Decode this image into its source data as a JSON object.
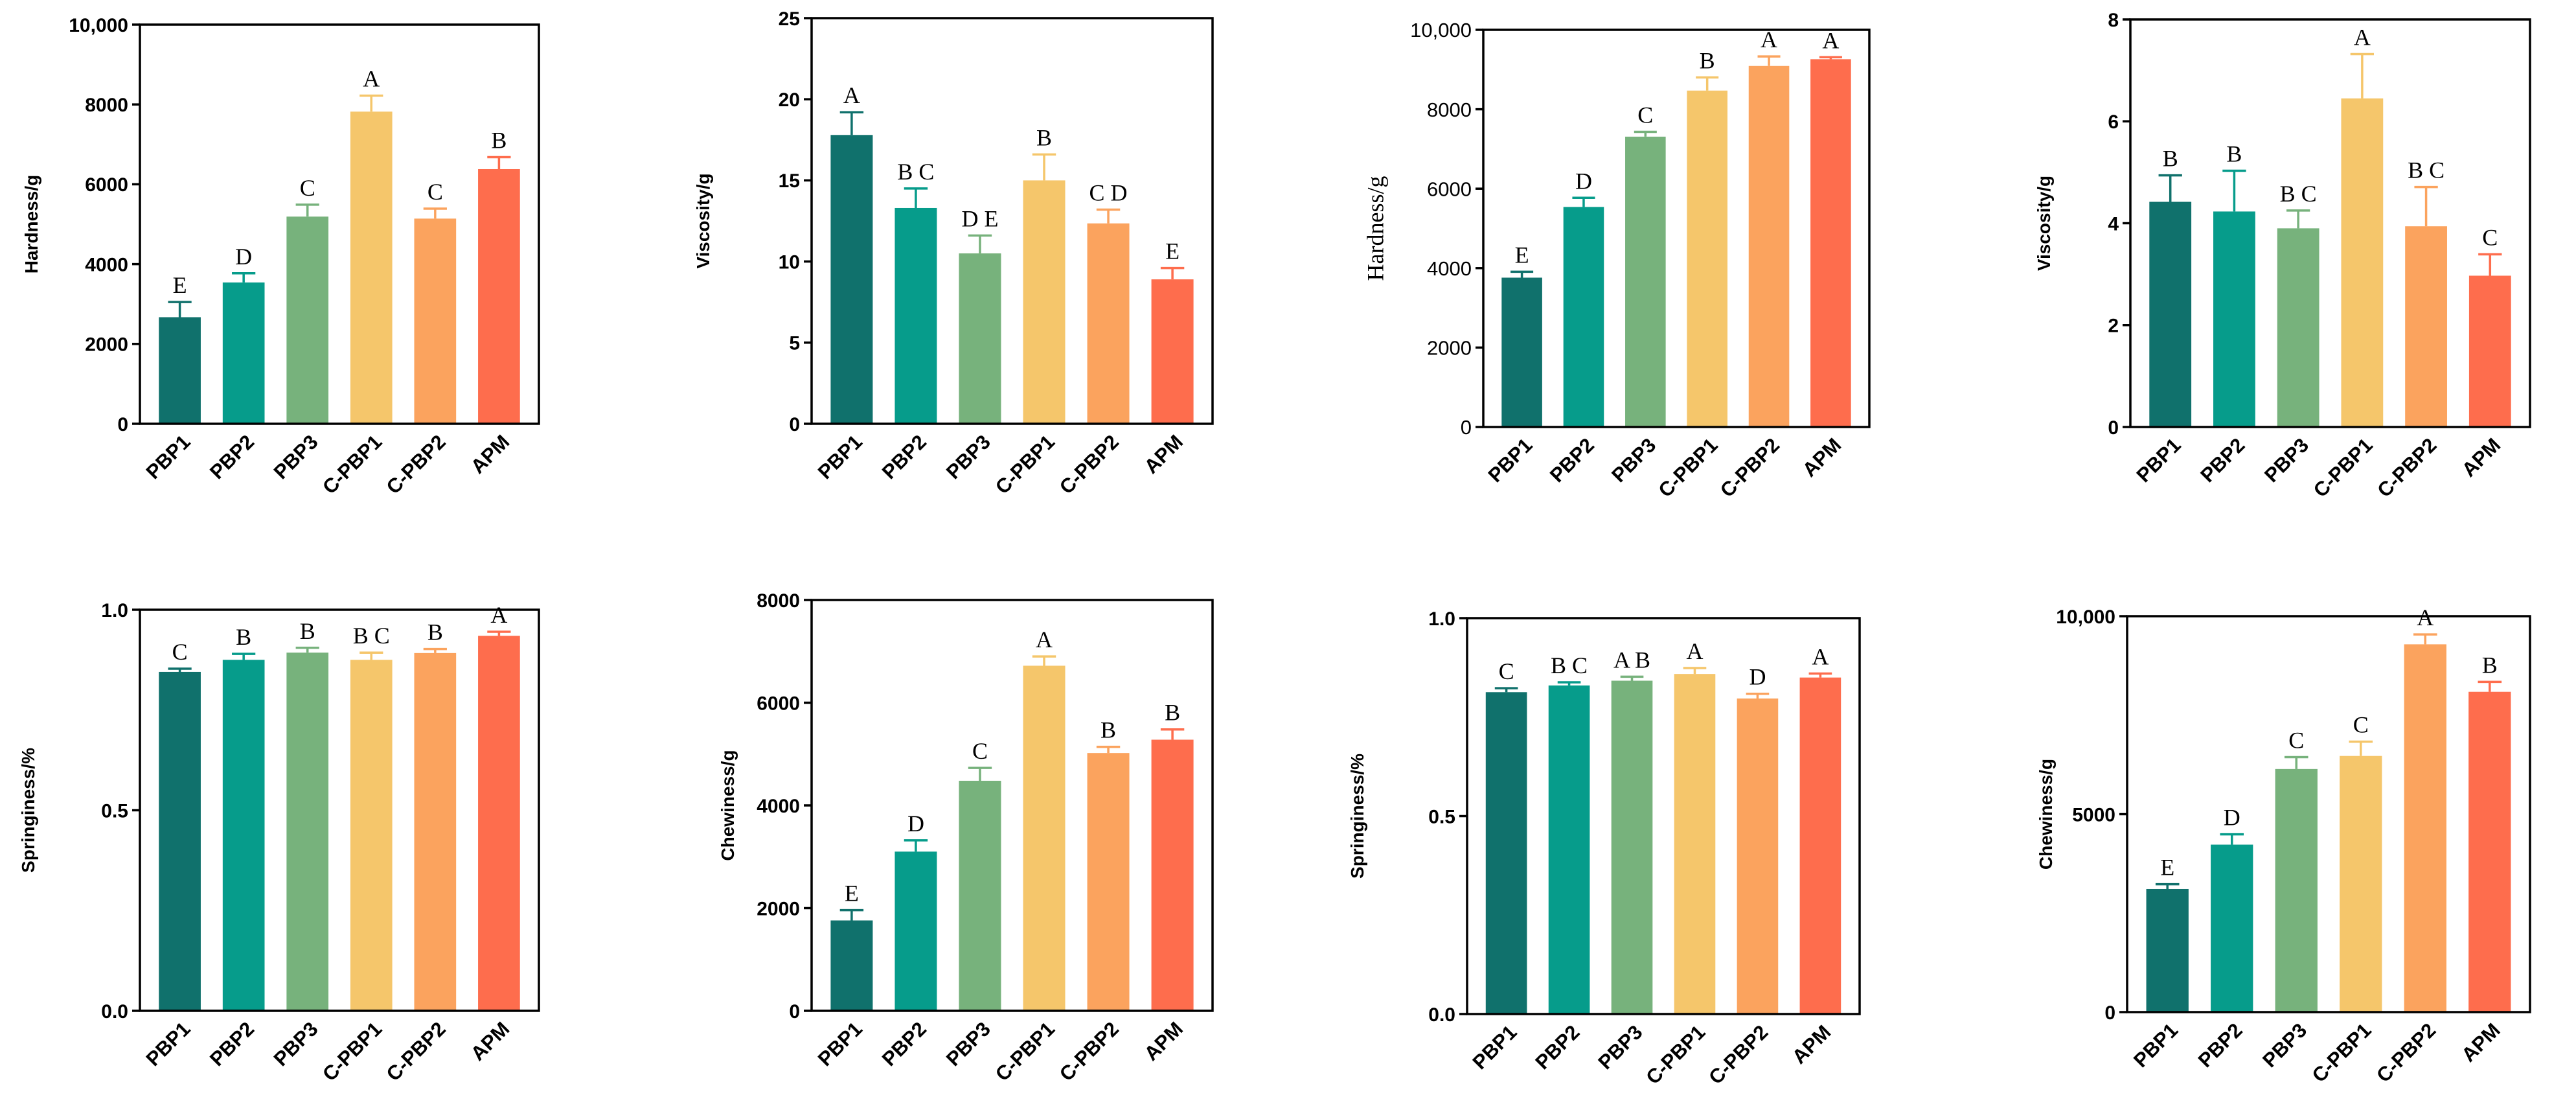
{
  "bar_colors": [
    "#10716c",
    "#069c8b",
    "#77b27c",
    "#f5c66b",
    "#fba35e",
    "#fe6d4d"
  ],
  "axis_color": "#000000",
  "chart_data": [
    {
      "type": "bar",
      "ylabel": "Hardness/g",
      "categories": [
        "PBP1",
        "PBP2",
        "PBP3",
        "C-PBP1",
        "C-PBP2",
        "APM"
      ],
      "values": [
        2670,
        3540,
        5190,
        7820,
        5140,
        6380
      ],
      "errors": [
        380,
        230,
        300,
        400,
        250,
        300
      ],
      "significance_letters": [
        "E",
        "D",
        "C",
        "A",
        "C",
        "B"
      ],
      "ylim": [
        0,
        10000
      ],
      "yticks": [
        0,
        2000,
        4000,
        6000,
        8000,
        10000
      ],
      "ytick_labels": [
        "0",
        "2000",
        "4000",
        "6000",
        "8000",
        "10,000"
      ]
    },
    {
      "type": "bar",
      "ylabel": "Viscosity/g",
      "categories": [
        "PBP1",
        "PBP2",
        "PBP3",
        "C-PBP1",
        "C-PBP2",
        "APM"
      ],
      "values": [
        17.8,
        13.3,
        10.5,
        15.0,
        12.35,
        8.9
      ],
      "errors": [
        1.4,
        1.2,
        1.1,
        1.6,
        0.85,
        0.7
      ],
      "significance_letters": [
        "A",
        "B C",
        "D E",
        "B",
        "C D",
        "E"
      ],
      "ylim": [
        0,
        25
      ],
      "yticks": [
        0,
        5,
        10,
        15,
        20,
        25
      ],
      "ytick_labels": [
        "0",
        "5",
        "10",
        "15",
        "20",
        "25"
      ]
    },
    {
      "type": "bar",
      "ylabel": "Hardness/g",
      "categories": [
        "PBP1",
        "PBP2",
        "PBP3",
        "C-PBP1",
        "C-PBP2",
        "APM"
      ],
      "values": [
        3760,
        5540,
        7310,
        8470,
        9090,
        9260
      ],
      "errors": [
        150,
        230,
        120,
        330,
        240,
        50
      ],
      "significance_letters": [
        "E",
        "D",
        "C",
        "B",
        "A",
        "A"
      ],
      "ylim": [
        0,
        10000
      ],
      "yticks": [
        0,
        2000,
        4000,
        6000,
        8000,
        10000
      ],
      "ytick_labels": [
        "0",
        "2000",
        "4000",
        "6000",
        "8000",
        "10,000"
      ]
    },
    {
      "type": "bar",
      "ylabel": "Viscosity/g",
      "categories": [
        "PBP1",
        "PBP2",
        "PBP3",
        "C-PBP1",
        "C-PBP2",
        "APM"
      ],
      "values": [
        4.42,
        4.23,
        3.9,
        6.45,
        3.94,
        2.97
      ],
      "errors": [
        0.52,
        0.8,
        0.35,
        0.87,
        0.77,
        0.42
      ],
      "significance_letters": [
        "B",
        "B",
        "B C",
        "A",
        "B C",
        "C"
      ],
      "ylim": [
        0,
        8
      ],
      "yticks": [
        0,
        2,
        4,
        6,
        8
      ],
      "ytick_labels": [
        "0",
        "2",
        "4",
        "6",
        "8"
      ]
    },
    {
      "type": "bar",
      "ylabel": "Springiness/%",
      "categories": [
        "PBP1",
        "PBP2",
        "PBP3",
        "C-PBP1",
        "C-PBP2",
        "APM"
      ],
      "values": [
        0.845,
        0.875,
        0.893,
        0.875,
        0.892,
        0.935
      ],
      "errors": [
        0.008,
        0.015,
        0.012,
        0.018,
        0.01,
        0.01
      ],
      "significance_letters": [
        "C",
        "B",
        "B",
        "B C",
        "B",
        "A"
      ],
      "ylim": [
        0,
        1.0
      ],
      "yticks": [
        0,
        0.5,
        1.0
      ],
      "ytick_labels": [
        "0.0",
        "0.5",
        "1.0"
      ]
    },
    {
      "type": "bar",
      "ylabel": "Chewiness/g",
      "categories": [
        "PBP1",
        "PBP2",
        "PBP3",
        "C-PBP1",
        "C-PBP2",
        "APM"
      ],
      "values": [
        1760,
        3100,
        4480,
        6720,
        5020,
        5280
      ],
      "errors": [
        200,
        220,
        250,
        180,
        120,
        200
      ],
      "significance_letters": [
        "E",
        "D",
        "C",
        "A",
        "B",
        "B"
      ],
      "ylim": [
        0,
        8000
      ],
      "yticks": [
        0,
        2000,
        4000,
        6000,
        8000
      ],
      "ytick_labels": [
        "0",
        "2000",
        "4000",
        "6000",
        "8000"
      ]
    },
    {
      "type": "bar",
      "ylabel": "Springiness/%",
      "categories": [
        "PBP1",
        "PBP2",
        "PBP3",
        "C-PBP1",
        "C-PBP2",
        "APM"
      ],
      "values": [
        0.813,
        0.83,
        0.842,
        0.859,
        0.797,
        0.85
      ],
      "errors": [
        0.01,
        0.008,
        0.01,
        0.015,
        0.012,
        0.01
      ],
      "significance_letters": [
        "C",
        "B C",
        "A B",
        "A",
        "D",
        "A"
      ],
      "ylim": [
        0,
        1.0
      ],
      "yticks": [
        0,
        0.5,
        1.0
      ],
      "ytick_labels": [
        "0.0",
        "0.5",
        "1.0"
      ]
    },
    {
      "type": "bar",
      "ylabel": "Chewiness/g",
      "categories": [
        "PBP1",
        "PBP2",
        "PBP3",
        "C-PBP1",
        "C-PBP2",
        "APM"
      ],
      "values": [
        3110,
        4230,
        6140,
        6470,
        9290,
        8090
      ],
      "errors": [
        120,
        260,
        300,
        360,
        250,
        250
      ],
      "significance_letters": [
        "E",
        "D",
        "C",
        "C",
        "A",
        "B"
      ],
      "ylim": [
        0,
        10000
      ],
      "yticks": [
        0,
        5000,
        10000
      ],
      "ytick_labels": [
        "0",
        "5000",
        "10,000"
      ]
    }
  ]
}
